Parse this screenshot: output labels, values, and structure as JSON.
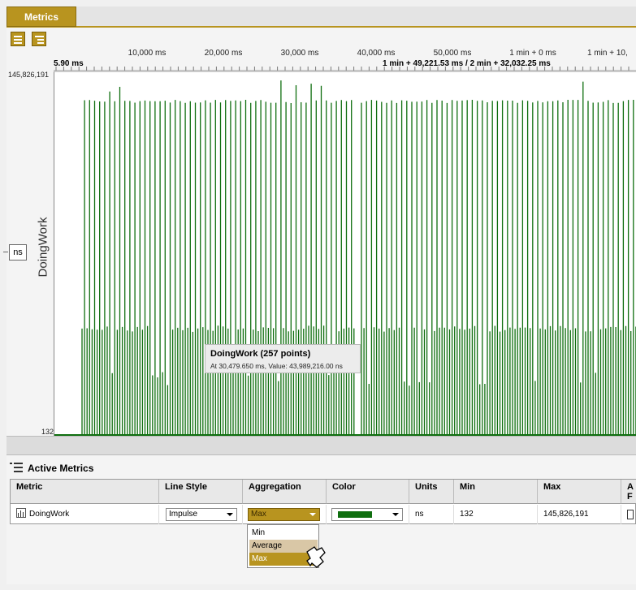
{
  "tab": {
    "label": "Metrics"
  },
  "ruler": {
    "ticks": [
      "10,000 ms",
      "20,000 ms",
      "30,000 ms",
      "40,000 ms",
      "50,000 ms",
      "1 min + 0 ms",
      "1 min + 10,"
    ],
    "start_label": "5.90 ms",
    "selection_label": "1 min + 49,221.53 ms / 2 min + 32,032.25 ms"
  },
  "yaxis": {
    "max": "145,826,191",
    "min": "132",
    "title": "DoingWork",
    "unit": "ns"
  },
  "tooltip": {
    "title": "DoingWork (257 points)",
    "detail": "At 30,479.650 ms, Value: 43,989,216.00 ns"
  },
  "chart_data": {
    "type": "bar",
    "series": [
      {
        "name": "DoingWork",
        "color": "#0f6e0f",
        "line_style": "Impulse"
      }
    ],
    "ylim": [
      132,
      145826191
    ],
    "points": 257
  },
  "active_metrics": {
    "title": "Active Metrics",
    "columns": [
      "Metric",
      "Line Style",
      "Aggregation",
      "Color",
      "Units",
      "Min",
      "Max",
      "A F"
    ],
    "row": {
      "metric": "DoingWork",
      "line_style": "Impulse",
      "aggregation": "Max",
      "color": "#0f6e0f",
      "units": "ns",
      "min": "132",
      "max": "145,826,191"
    }
  },
  "aggregation_options": [
    "Min",
    "Average",
    "Max"
  ],
  "colors": {
    "accent": "#b8941f",
    "series": "#0f6e0f"
  }
}
